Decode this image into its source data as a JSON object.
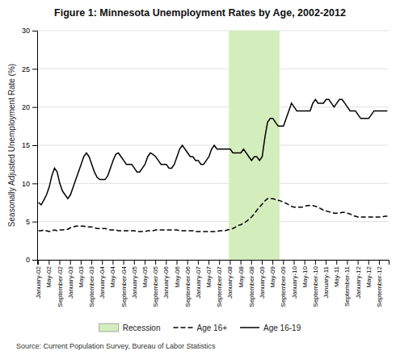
{
  "chart_data": {
    "type": "line",
    "title": "Figure 1:  Minnesota Unemployment Rates by Age, 2002-2012",
    "y_label": "Seasonally Adjusted Unemployment Rate (%)",
    "source": "Source: Current Population Survey, Bureau of Labor Statistics",
    "categories": [
      "January-02",
      null,
      null,
      null,
      "May-02",
      null,
      null,
      null,
      "September-02",
      null,
      null,
      null,
      "January-03",
      null,
      null,
      null,
      "May-03",
      null,
      null,
      null,
      "September-03",
      null,
      null,
      null,
      "January-04",
      null,
      null,
      null,
      "May-04",
      null,
      null,
      null,
      "September-04",
      null,
      null,
      null,
      "January-05",
      null,
      null,
      null,
      "May-05",
      null,
      null,
      null,
      "September-05",
      null,
      null,
      null,
      "January-06",
      null,
      null,
      null,
      "May-06",
      null,
      null,
      null,
      "September-06",
      null,
      null,
      null,
      "January-07",
      null,
      null,
      null,
      "May-07",
      null,
      null,
      null,
      "September-07",
      null,
      null,
      null,
      "January-08",
      null,
      null,
      null,
      "May-08",
      null,
      null,
      null,
      "September-08",
      null,
      null,
      null,
      "January-09",
      null,
      null,
      null,
      "May-09",
      null,
      null,
      null,
      "September-09",
      null,
      null,
      null,
      "January-10",
      null,
      null,
      null,
      "May-10",
      null,
      null,
      null,
      "September-10",
      null,
      null,
      null,
      "January-11",
      null,
      null,
      null,
      "May-11",
      null,
      null,
      null,
      "September-11",
      null,
      null,
      null,
      "January-12",
      null,
      null,
      null,
      "May-12",
      null,
      null,
      null,
      "September-12",
      null,
      null,
      null
    ],
    "highlight": {
      "name": "Recession",
      "from": 72,
      "to": 90,
      "color": "#d4edbc"
    },
    "series": [
      {
        "name": "Age 16+",
        "color": "#000000",
        "line_style": "dashed",
        "values": [
          3.8,
          3.8,
          3.9,
          3.8,
          3.7,
          3.8,
          3.9,
          3.8,
          3.9,
          3.9,
          4.0,
          4.0,
          4.2,
          4.3,
          4.4,
          4.4,
          4.4,
          4.4,
          4.3,
          4.3,
          4.3,
          4.2,
          4.1,
          4.1,
          4.1,
          4.1,
          4.0,
          3.9,
          3.9,
          3.9,
          3.8,
          3.8,
          3.8,
          3.8,
          3.8,
          3.8,
          3.8,
          3.7,
          3.7,
          3.7,
          3.7,
          3.8,
          3.8,
          3.8,
          3.9,
          3.9,
          3.9,
          3.9,
          3.9,
          3.9,
          3.9,
          3.9,
          3.9,
          3.8,
          3.8,
          3.8,
          3.8,
          3.8,
          3.8,
          3.7,
          3.7,
          3.7,
          3.7,
          3.7,
          3.7,
          3.7,
          3.7,
          3.7,
          3.8,
          3.8,
          3.8,
          3.9,
          4.0,
          4.1,
          4.3,
          4.5,
          4.6,
          4.8,
          5.0,
          5.3,
          5.6,
          6.0,
          6.5,
          6.9,
          7.3,
          7.7,
          8.0,
          8.0,
          8.0,
          7.9,
          7.8,
          7.7,
          7.5,
          7.4,
          7.2,
          7.0,
          6.9,
          6.9,
          6.9,
          6.9,
          7.0,
          7.1,
          7.1,
          7.1,
          7.0,
          6.9,
          6.7,
          6.5,
          6.4,
          6.3,
          6.2,
          6.1,
          6.1,
          6.1,
          6.2,
          6.2,
          6.1,
          6.0,
          5.8,
          5.7,
          5.6,
          5.6,
          5.6,
          5.6,
          5.6,
          5.6,
          5.6,
          5.6,
          5.6,
          5.6,
          5.7,
          5.7
        ]
      },
      {
        "name": "Age 16-19",
        "color": "#000000",
        "line_style": "solid",
        "values": [
          7.5,
          7.2,
          7.8,
          8.5,
          9.5,
          11.0,
          12.0,
          11.5,
          10.0,
          9.0,
          8.5,
          8.0,
          8.5,
          9.5,
          10.5,
          11.5,
          12.5,
          13.5,
          14.0,
          13.5,
          12.5,
          11.5,
          10.8,
          10.5,
          10.5,
          10.5,
          11.0,
          12.0,
          13.0,
          13.8,
          14.0,
          13.5,
          13.0,
          12.5,
          12.5,
          12.5,
          12.0,
          11.5,
          11.5,
          12.0,
          12.5,
          13.5,
          14.0,
          13.8,
          13.5,
          13.0,
          12.5,
          12.5,
          12.5,
          12.0,
          12.0,
          12.5,
          13.5,
          14.5,
          15.0,
          14.5,
          14.0,
          13.5,
          13.5,
          13.0,
          13.0,
          12.5,
          12.5,
          13.0,
          13.5,
          14.5,
          15.0,
          14.5,
          14.5,
          14.5,
          14.5,
          14.5,
          14.5,
          14.0,
          14.0,
          14.0,
          14.0,
          14.5,
          14.0,
          13.5,
          13.0,
          13.5,
          13.5,
          13.0,
          13.5,
          16.0,
          18.0,
          18.5,
          18.5,
          18.0,
          17.5,
          17.5,
          17.5,
          18.5,
          19.5,
          20.5,
          20.0,
          19.5,
          19.5,
          19.5,
          19.5,
          19.5,
          19.5,
          20.5,
          21.0,
          20.5,
          20.5,
          20.5,
          21.0,
          21.0,
          20.5,
          20.0,
          20.5,
          21.0,
          21.0,
          20.5,
          20.0,
          19.5,
          19.5,
          19.5,
          19.0,
          18.5,
          18.5,
          18.5,
          18.5,
          19.0,
          19.5,
          19.5,
          19.5,
          19.5,
          19.5,
          19.5
        ]
      }
    ],
    "ylim": [
      0,
      30
    ],
    "yticks": [
      0,
      5,
      10,
      15,
      20,
      25,
      30
    ],
    "grid": true,
    "legend": "bottom"
  }
}
